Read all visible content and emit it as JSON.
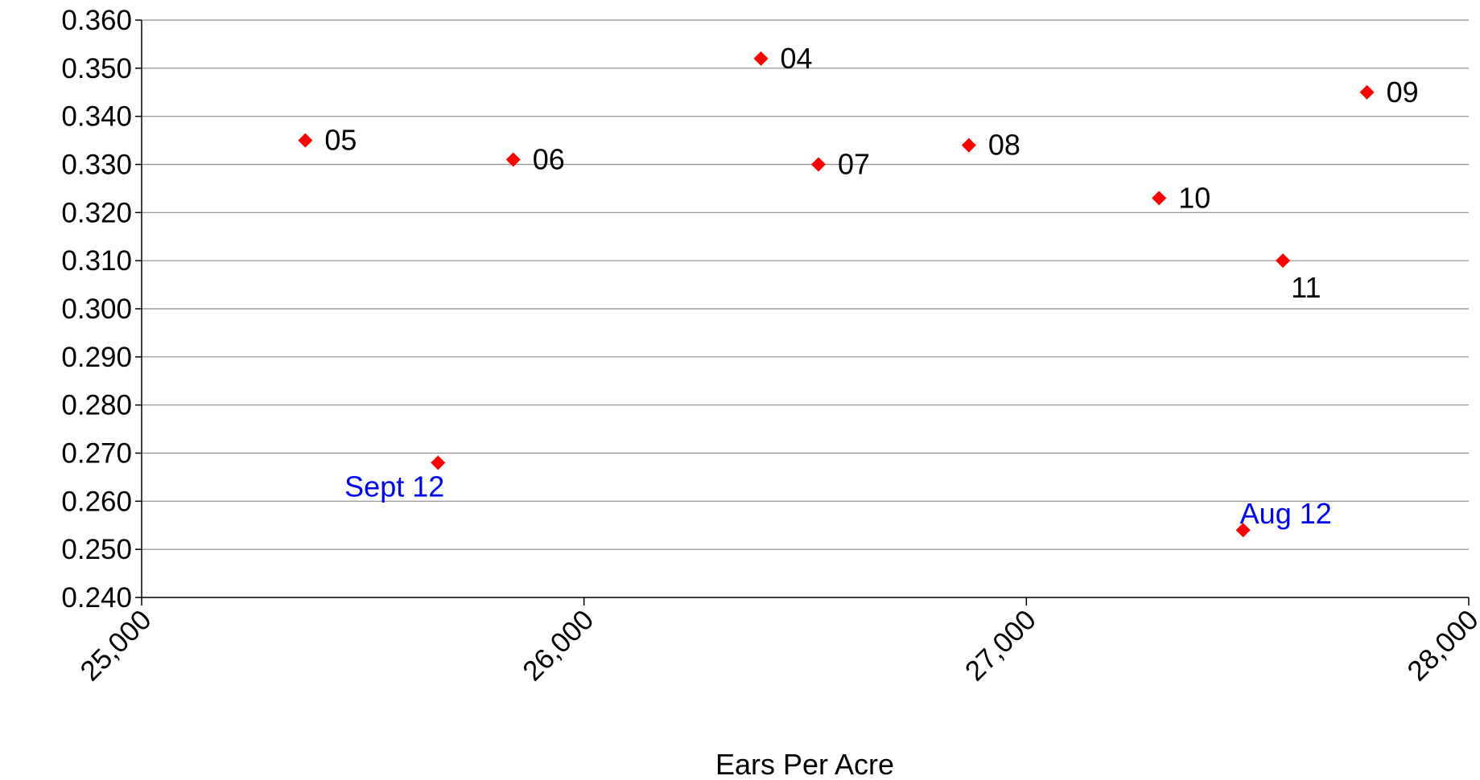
{
  "chart_data": {
    "type": "scatter",
    "title": "",
    "xlabel": "Ears Per Acre",
    "ylabel": "",
    "xlim": [
      25000,
      28000
    ],
    "ylim": [
      0.24,
      0.36
    ],
    "x_ticks": [
      "25,000",
      "26,000",
      "27,000",
      "28,000"
    ],
    "x_tick_values": [
      25000,
      26000,
      27000,
      28000
    ],
    "y_ticks": [
      "0.360",
      "0.350",
      "0.340",
      "0.330",
      "0.320",
      "0.310",
      "0.300",
      "0.290",
      "0.280",
      "0.270",
      "0.260",
      "0.250",
      "0.240"
    ],
    "y_tick_values": [
      0.36,
      0.35,
      0.34,
      0.33,
      0.32,
      0.31,
      0.3,
      0.29,
      0.28,
      0.27,
      0.26,
      0.25,
      0.24
    ],
    "grid": true,
    "marker_color": "#ff0000",
    "points": [
      {
        "label": "05",
        "x": 25370,
        "y": 0.335,
        "label_color": "#000000",
        "label_pos": "right"
      },
      {
        "label": "06",
        "x": 25840,
        "y": 0.331,
        "label_color": "#000000",
        "label_pos": "right"
      },
      {
        "label": "04",
        "x": 26400,
        "y": 0.352,
        "label_color": "#000000",
        "label_pos": "right"
      },
      {
        "label": "07",
        "x": 26530,
        "y": 0.33,
        "label_color": "#000000",
        "label_pos": "right"
      },
      {
        "label": "08",
        "x": 26870,
        "y": 0.334,
        "label_color": "#000000",
        "label_pos": "right"
      },
      {
        "label": "10",
        "x": 27300,
        "y": 0.323,
        "label_color": "#000000",
        "label_pos": "right"
      },
      {
        "label": "11",
        "x": 27580,
        "y": 0.31,
        "label_color": "#000000",
        "label_pos": "below"
      },
      {
        "label": "09",
        "x": 27770,
        "y": 0.345,
        "label_color": "#000000",
        "label_pos": "right"
      },
      {
        "label": "Sept 12",
        "x": 25670,
        "y": 0.268,
        "label_color": "#0000ff",
        "label_pos": "below-left"
      },
      {
        "label": "Aug 12",
        "x": 27490,
        "y": 0.254,
        "label_color": "#0000ff",
        "label_pos": "above-right"
      }
    ]
  }
}
